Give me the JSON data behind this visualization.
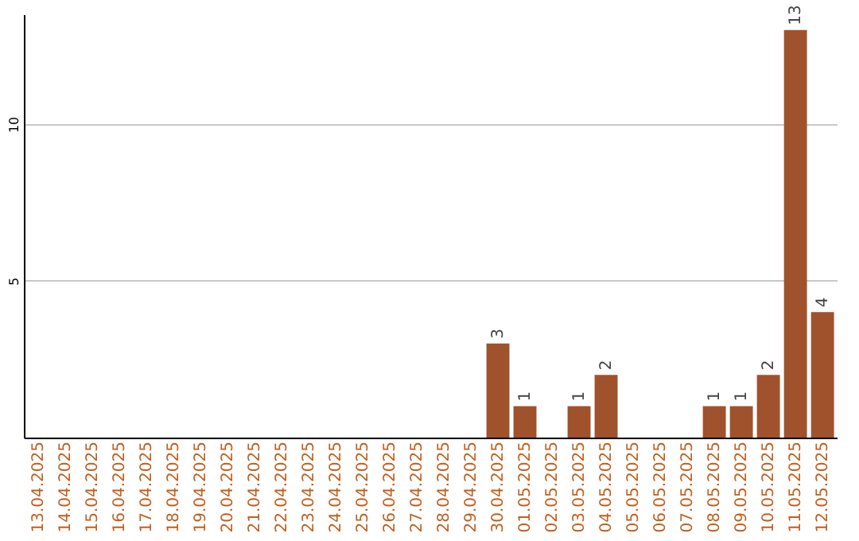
{
  "chart_data": {
    "type": "bar",
    "categories": [
      "13.04.2025",
      "14.04.2025",
      "15.04.2025",
      "16.04.2025",
      "17.04.2025",
      "18.04.2025",
      "19.04.2025",
      "20.04.2025",
      "21.04.2025",
      "22.04.2025",
      "23.04.2025",
      "24.04.2025",
      "25.04.2025",
      "26.04.2025",
      "27.04.2025",
      "28.04.2025",
      "29.04.2025",
      "30.04.2025",
      "01.05.2025",
      "02.05.2025",
      "03.05.2025",
      "04.05.2025",
      "05.05.2025",
      "06.05.2025",
      "07.05.2025",
      "08.05.2025",
      "09.05.2025",
      "10.05.2025",
      "11.05.2025",
      "12.05.2025"
    ],
    "values": [
      0,
      0,
      0,
      0,
      0,
      0,
      0,
      0,
      0,
      0,
      0,
      0,
      0,
      0,
      0,
      0,
      0,
      3,
      1,
      0,
      1,
      2,
      0,
      0,
      0,
      1,
      1,
      2,
      13,
      4
    ],
    "value_labels": [
      null,
      null,
      null,
      null,
      null,
      null,
      null,
      null,
      null,
      null,
      null,
      null,
      null,
      null,
      null,
      null,
      null,
      "3",
      "1",
      null,
      "1",
      "2",
      null,
      null,
      null,
      "1",
      "1",
      "2",
      "13",
      "4"
    ],
    "color": "#a0522d",
    "ylim": [
      0,
      13.5
    ],
    "yticks": [
      5,
      10
    ],
    "grid": "y"
  }
}
